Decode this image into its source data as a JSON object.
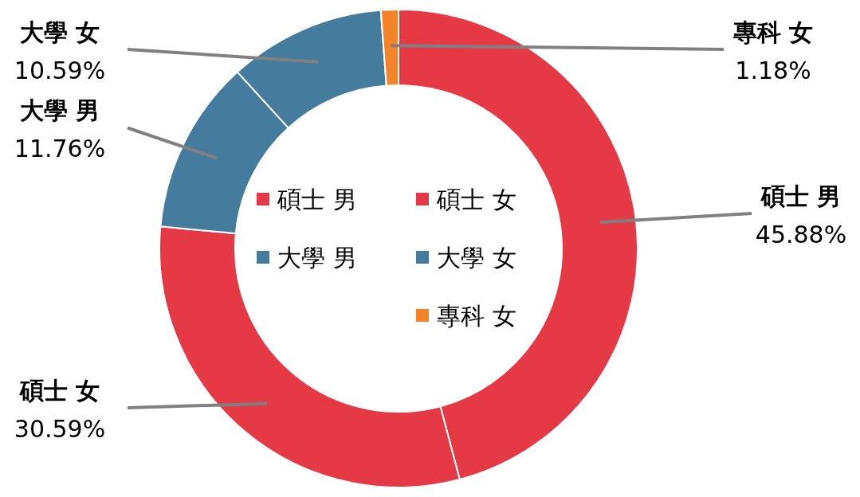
{
  "chart_data": {
    "type": "donut",
    "categories": [
      "碩士 男",
      "碩士 女",
      "大學 男",
      "大學 女",
      "專科 女"
    ],
    "values": [
      45.88,
      30.59,
      11.76,
      10.59,
      1.18
    ],
    "colors": [
      "#e63946",
      "#e63946",
      "#457b9d",
      "#457b9d",
      "#f4842a"
    ],
    "value_labels": [
      "45.88%",
      "30.59%",
      "11.76%",
      "10.59%",
      "1.18%"
    ],
    "legend": "center"
  }
}
